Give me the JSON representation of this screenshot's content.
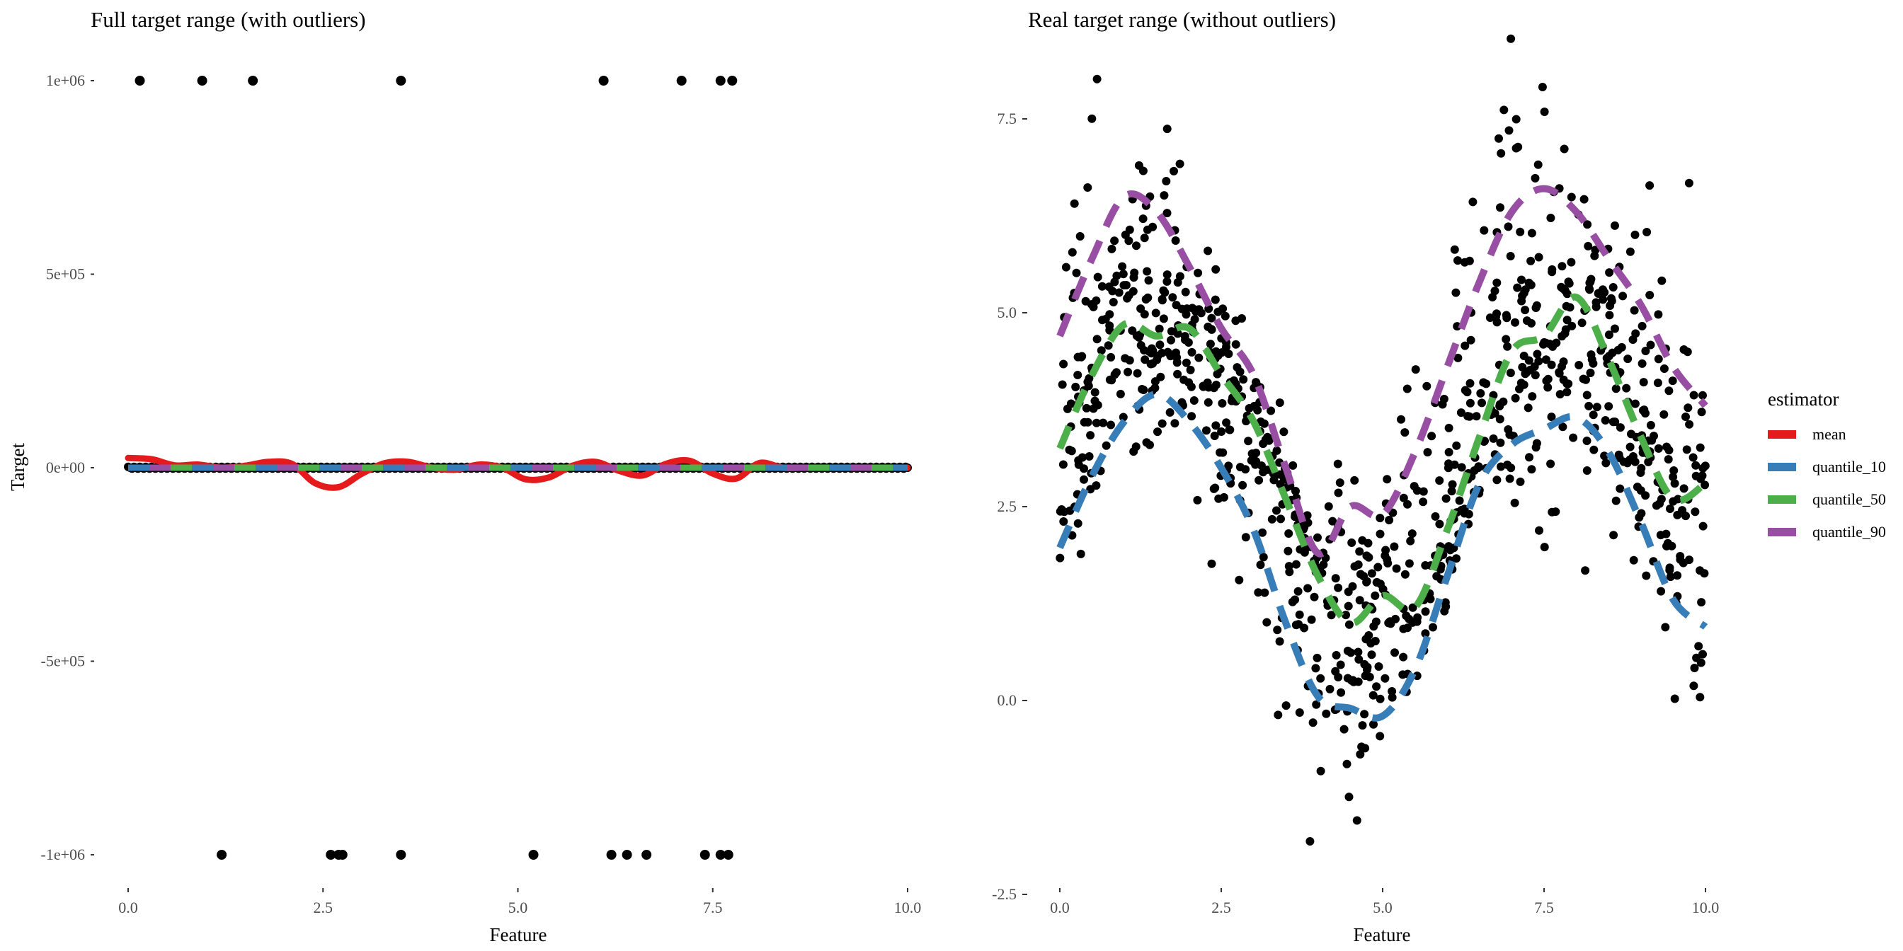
{
  "chart_data": [
    {
      "type": "scatter",
      "title": "Full target range (with outliers)",
      "xlabel": "Feature",
      "ylabel": "Target",
      "xlim": [
        -0.5,
        10.5
      ],
      "ylim": [
        -1100000,
        1100000
      ],
      "x_ticks": [
        0,
        2.5,
        5,
        7.5,
        10
      ],
      "x_tick_labels": [
        "0.0",
        "2.5",
        "5.0",
        "7.5",
        "10.0"
      ],
      "y_ticks": [
        1000000,
        500000,
        0,
        -500000,
        -1000000
      ],
      "y_tick_labels": [
        "1e+06",
        "5e+05",
        "0e+00",
        "-5e+05",
        "-1e+06"
      ],
      "grid": false,
      "outliers_x": [
        0.15,
        0.95,
        1.6,
        3.5,
        6.1,
        7.1,
        7.6,
        7.75,
        1.2,
        2.6,
        2.7,
        2.75,
        3.5,
        5.2,
        6.2,
        6.4,
        6.65,
        7.4,
        7.6,
        7.7
      ],
      "outliers_y": [
        1000000,
        1000000,
        1000000,
        1000000,
        1000000,
        1000000,
        1000000,
        1000000,
        -1000000,
        -1000000,
        -1000000,
        -1000000,
        -1000000,
        -1000000,
        -1000000,
        -1000000,
        -1000000,
        -1000000,
        -1000000,
        -1000000
      ],
      "mean_x": [
        0,
        0.3,
        0.6,
        0.9,
        1.2,
        1.5,
        1.8,
        2.1,
        2.4,
        2.7,
        3.0,
        3.3,
        3.6,
        3.9,
        4.2,
        4.5,
        4.8,
        5.1,
        5.4,
        5.7,
        6.0,
        6.3,
        6.6,
        6.9,
        7.2,
        7.5,
        7.8,
        8.1,
        8.4,
        8.7,
        9.0,
        9.3,
        9.6,
        10.0
      ],
      "mean_y": [
        25000,
        22000,
        6000,
        8000,
        0,
        5000,
        15000,
        10000,
        -40000,
        -50000,
        -15000,
        12000,
        15000,
        0,
        -5000,
        8000,
        0,
        -30000,
        -25000,
        5000,
        15000,
        -8000,
        -20000,
        10000,
        18000,
        -15000,
        -28000,
        12000,
        0,
        0,
        0,
        0,
        0,
        0
      ],
      "series": [
        {
          "name": "mean",
          "color": "#e41a1c"
        },
        {
          "name": "quantile_10",
          "color": "#377eb8"
        },
        {
          "name": "quantile_50",
          "color": "#4daf4a"
        },
        {
          "name": "quantile_90",
          "color": "#984ea3"
        }
      ]
    },
    {
      "type": "scatter",
      "title": "Real target range (without outliers)",
      "xlabel": "Feature",
      "ylabel": "",
      "xlim": [
        -0.5,
        10.5
      ],
      "ylim": [
        -2.5,
        8.0
      ],
      "x_ticks": [
        0,
        2.5,
        5,
        7.5,
        10
      ],
      "x_tick_labels": [
        "0.0",
        "2.5",
        "5.0",
        "7.5",
        "10.0"
      ],
      "y_ticks": [
        7.5,
        5.0,
        2.5,
        0.0,
        -2.5
      ],
      "y_tick_labels": [
        "7.5",
        "5.0",
        "2.5",
        "0.0",
        "-2.5"
      ],
      "grid": false,
      "curve_x": [
        0,
        0.5,
        1.0,
        1.5,
        2.0,
        2.5,
        3.0,
        3.5,
        4.0,
        4.5,
        5.0,
        5.5,
        6.0,
        6.5,
        7.0,
        7.5,
        8.0,
        8.5,
        9.0,
        9.5,
        10.0
      ],
      "series": [
        {
          "name": "quantile_10",
          "color": "#377eb8",
          "dash": "dashed",
          "y": [
            1.97,
            2.9,
            3.6,
            3.95,
            3.6,
            3.0,
            2.2,
            1.0,
            0.05,
            -0.1,
            -0.2,
            0.4,
            1.6,
            2.8,
            3.3,
            3.5,
            3.65,
            3.2,
            2.3,
            1.3,
            0.95
          ]
        },
        {
          "name": "quantile_50",
          "color": "#4daf4a",
          "dash": "dashed",
          "y": [
            3.25,
            4.2,
            4.85,
            4.7,
            4.8,
            4.2,
            3.6,
            2.6,
            1.6,
            1.0,
            1.35,
            1.2,
            2.2,
            3.4,
            4.5,
            4.7,
            5.2,
            4.4,
            3.4,
            2.6,
            2.8
          ]
        },
        {
          "name": "quantile_90",
          "color": "#984ea3",
          "dash": "dashed",
          "y": [
            4.7,
            5.7,
            6.5,
            6.3,
            5.6,
            4.8,
            4.2,
            3.0,
            1.9,
            2.5,
            2.4,
            3.2,
            4.3,
            5.4,
            6.3,
            6.6,
            6.3,
            5.7,
            5.1,
            4.3,
            3.8
          ]
        }
      ],
      "legend": {
        "title": "estimator",
        "position": "right",
        "entries": [
          {
            "name": "mean",
            "color": "#e41a1c"
          },
          {
            "name": "quantile_10",
            "color": "#377eb8"
          },
          {
            "name": "quantile_50",
            "color": "#4daf4a"
          },
          {
            "name": "quantile_90",
            "color": "#984ea3"
          }
        ]
      },
      "noise_seed": 7,
      "point_count": 1000
    }
  ]
}
